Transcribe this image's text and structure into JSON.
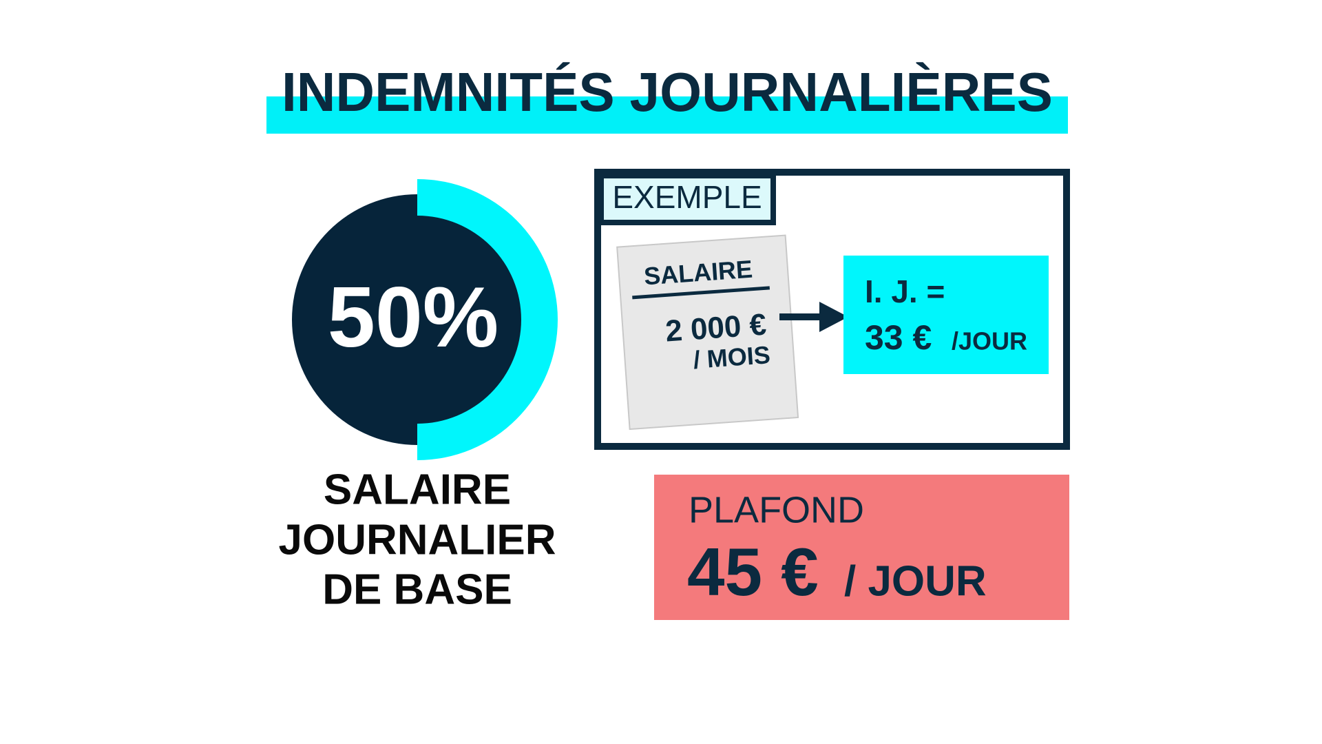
{
  "header": {
    "title": "INDEMNITÉS JOURNALIÈRES"
  },
  "rate": {
    "value": 50,
    "label": "50%",
    "caption": [
      "SALAIRE",
      "JOURNALIER",
      "DE BASE"
    ]
  },
  "example": {
    "tag": "EXEMPLE",
    "salary": {
      "label": "SALAIRE",
      "amount": "2 000 €",
      "period": "/ MOIS"
    },
    "result": {
      "label": "I. J. =",
      "amount": "33 €",
      "period": "/JOUR"
    }
  },
  "ceiling": {
    "label": "PLAFOND",
    "amount": "45 €",
    "period": "/ JOUR"
  }
}
